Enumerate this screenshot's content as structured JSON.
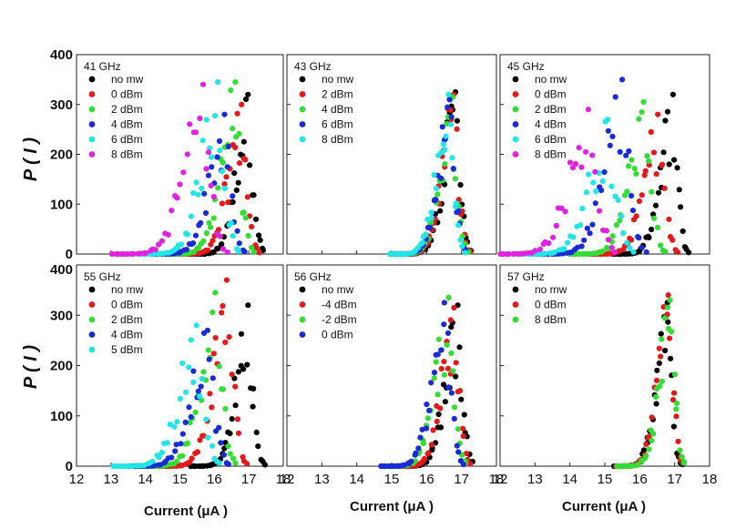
{
  "figure": {
    "ylabel": "P ( I )",
    "xlabel": "Current (μA )",
    "x_ticks": [
      "12",
      "13",
      "14",
      "15",
      "16",
      "17",
      "18"
    ],
    "y_ticks": [
      "0",
      "100",
      "200",
      "300",
      "400"
    ]
  },
  "chart_data": [
    {
      "type": "scatter",
      "title": "41 GHz",
      "xlabel": "Current (μA )",
      "ylabel": "P ( I )",
      "xlim": [
        12,
        18
      ],
      "ylim": [
        0,
        400
      ],
      "series": [
        {
          "name": "no mw",
          "color": "#000000",
          "peak_x": 16.95,
          "peak_y": 320,
          "width": 0.55
        },
        {
          "name": "0 dBm",
          "color": "#e31a1c",
          "peak_x": 16.75,
          "peak_y": 300,
          "width": 0.6
        },
        {
          "name": "2 dBm",
          "color": "#33dd33",
          "peak_x": 16.55,
          "peak_y": 345,
          "width": 0.65
        },
        {
          "name": "4 dBm",
          "color": "#1a2bd6",
          "peak_x": 16.25,
          "peak_y": 280,
          "width": 0.7
        },
        {
          "name": "6 dBm",
          "color": "#22e5e5",
          "peak_x": 16.05,
          "peak_y": 345,
          "width": 0.75
        },
        {
          "name": "8 dBm",
          "color": "#e022e0",
          "peak_x": 15.6,
          "peak_y": 340,
          "width": 0.85
        }
      ]
    },
    {
      "type": "scatter",
      "title": "43 GHz",
      "xlabel": "Current (μA )",
      "ylabel": "P ( I )",
      "xlim": [
        12,
        18
      ],
      "ylim": [
        0,
        400
      ],
      "series": [
        {
          "name": "no mw",
          "color": "#000000",
          "peak_x": 16.8,
          "peak_y": 325,
          "width": 0.55
        },
        {
          "name": "2 dBm",
          "color": "#e31a1c",
          "peak_x": 16.75,
          "peak_y": 320,
          "width": 0.55
        },
        {
          "name": "4 dBm",
          "color": "#33dd33",
          "peak_x": 16.7,
          "peak_y": 315,
          "width": 0.55
        },
        {
          "name": "6 dBm",
          "color": "#1a2bd6",
          "peak_x": 16.65,
          "peak_y": 310,
          "width": 0.55
        },
        {
          "name": "8 dBm",
          "color": "#22e5e5",
          "peak_x": 16.6,
          "peak_y": 320,
          "width": 0.55
        }
      ]
    },
    {
      "type": "scatter",
      "title": "45 GHz",
      "xlabel": "Current (μA )",
      "ylabel": "P ( I )",
      "xlim": [
        12,
        18
      ],
      "ylim": [
        0,
        400
      ],
      "series": [
        {
          "name": "no mw",
          "color": "#000000",
          "peak_x": 16.9,
          "peak_y": 320,
          "width": 0.55
        },
        {
          "name": "0 dBm",
          "color": "#e31a1c",
          "peak_x": 16.5,
          "peak_y": 280,
          "width": 0.65
        },
        {
          "name": "2 dBm",
          "color": "#33dd33",
          "peak_x": 16.1,
          "peak_y": 305,
          "width": 0.7
        },
        {
          "name": "4 dBm",
          "color": "#1a2bd6",
          "peak_x": 15.45,
          "peak_y": 350,
          "width": 0.8
        },
        {
          "name": "6 dBm",
          "color": "#22e5e5",
          "peak_x": 15.05,
          "peak_y": 270,
          "width": 0.85
        },
        {
          "name": "8 dBm",
          "color": "#e022e0",
          "peak_x": 14.5,
          "peak_y": 290,
          "width": 0.9
        }
      ]
    },
    {
      "type": "scatter",
      "title": "55 GHz",
      "xlabel": "Current (μA )",
      "ylabel": "P ( I )",
      "xlim": [
        12,
        18
      ],
      "ylim": [
        0,
        400
      ],
      "series": [
        {
          "name": "no mw",
          "color": "#000000",
          "peak_x": 16.95,
          "peak_y": 320,
          "width": 0.55
        },
        {
          "name": "0 dBm",
          "color": "#e31a1c",
          "peak_x": 16.35,
          "peak_y": 370,
          "width": 0.65
        },
        {
          "name": "2 dBm",
          "color": "#33dd33",
          "peak_x": 16.0,
          "peak_y": 345,
          "width": 0.7
        },
        {
          "name": "4 dBm",
          "color": "#1a2bd6",
          "peak_x": 15.75,
          "peak_y": 270,
          "width": 0.75
        },
        {
          "name": "5 dBm",
          "color": "#22e5e5",
          "peak_x": 15.45,
          "peak_y": 280,
          "width": 0.8
        }
      ]
    },
    {
      "type": "scatter",
      "title": "56 GHz",
      "xlabel": "Current (μA )",
      "ylabel": "P ( I )",
      "xlim": [
        12,
        18
      ],
      "ylim": [
        0,
        400
      ],
      "series": [
        {
          "name": "no mw",
          "color": "#000000",
          "peak_x": 16.85,
          "peak_y": 320,
          "width": 0.55
        },
        {
          "name": "-4 dBm",
          "color": "#e31a1c",
          "peak_x": 16.75,
          "peak_y": 315,
          "width": 0.55
        },
        {
          "name": "-2 dBm",
          "color": "#33dd33",
          "peak_x": 16.6,
          "peak_y": 335,
          "width": 0.6
        },
        {
          "name": "0 dBm",
          "color": "#1a2bd6",
          "peak_x": 16.5,
          "peak_y": 325,
          "width": 0.6
        }
      ]
    },
    {
      "type": "scatter",
      "title": "57 GHz",
      "xlabel": "Current (μA )",
      "ylabel": "P ( I )",
      "xlim": [
        12,
        18
      ],
      "ylim": [
        0,
        400
      ],
      "series": [
        {
          "name": "no mw",
          "color": "#000000",
          "peak_x": 16.75,
          "peak_y": 325,
          "width": 0.5
        },
        {
          "name": "0 dBm",
          "color": "#e31a1c",
          "peak_x": 16.8,
          "peak_y": 340,
          "width": 0.5
        },
        {
          "name": "8 dBm",
          "color": "#33dd33",
          "peak_x": 16.85,
          "peak_y": 330,
          "width": 0.5
        }
      ]
    }
  ]
}
